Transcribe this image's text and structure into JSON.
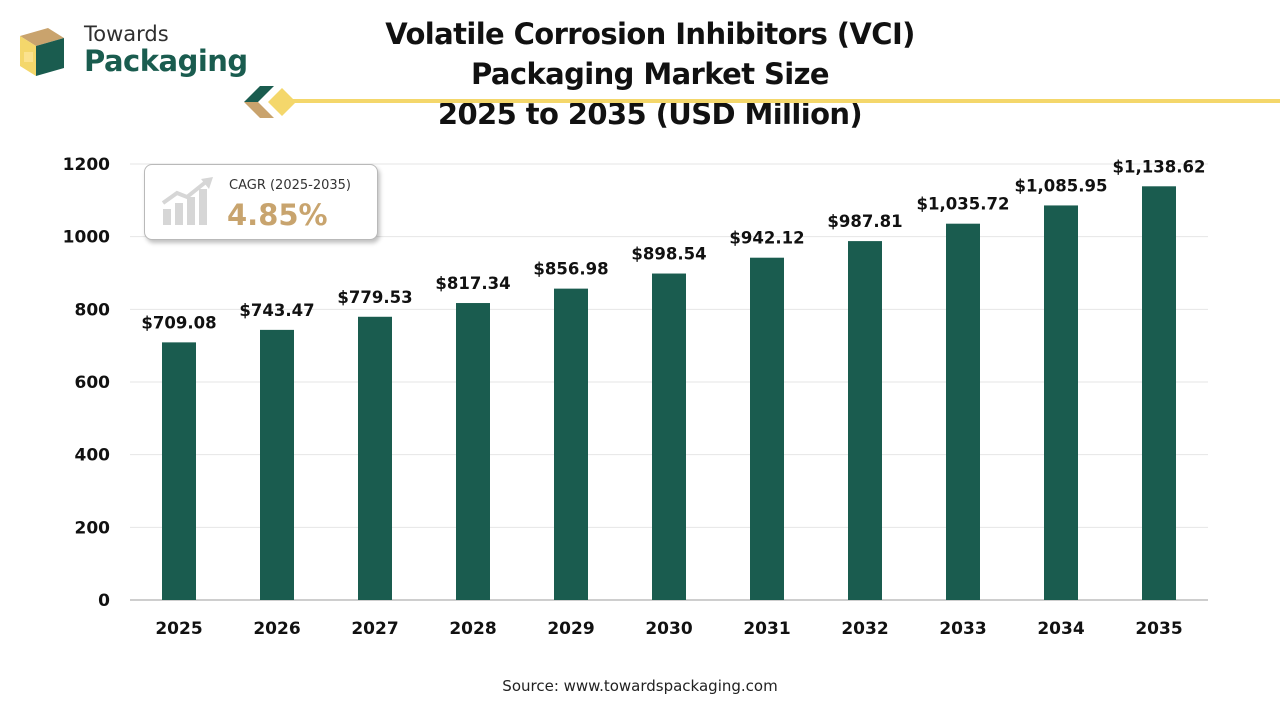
{
  "brand": {
    "top": "Towards",
    "main": "Packaging"
  },
  "title_line1": "Volatile Corrosion Inhibitors (VCI) Packaging Market Size",
  "title_line2": "2025 to 2035 (USD Million)",
  "cagr": {
    "label": "CAGR (2025-2035)",
    "value": "4.85%"
  },
  "source": "Source: www.towardspackaging.com",
  "colors": {
    "bar": "#1a5c4f",
    "accent": "#f4d76b",
    "cagr": "#c8a46e",
    "brand": "#1a5c4f"
  },
  "chart_data": {
    "type": "bar",
    "categories": [
      "2025",
      "2026",
      "2027",
      "2028",
      "2029",
      "2030",
      "2031",
      "2032",
      "2033",
      "2034",
      "2035"
    ],
    "values": [
      709.08,
      743.47,
      779.53,
      817.34,
      856.98,
      898.54,
      942.12,
      987.81,
      1035.72,
      1085.95,
      1138.62
    ],
    "value_labels": [
      "$709.08",
      "$743.47",
      "$779.53",
      "$817.34",
      "$856.98",
      "$898.54",
      "$942.12",
      "$987.81",
      "$1,035.72",
      "$1,085.95",
      "$1,138.62"
    ],
    "yticks": [
      0,
      200,
      400,
      600,
      800,
      1000,
      1200
    ],
    "ylim": [
      0,
      1200
    ],
    "grid": true,
    "legend": "none"
  }
}
